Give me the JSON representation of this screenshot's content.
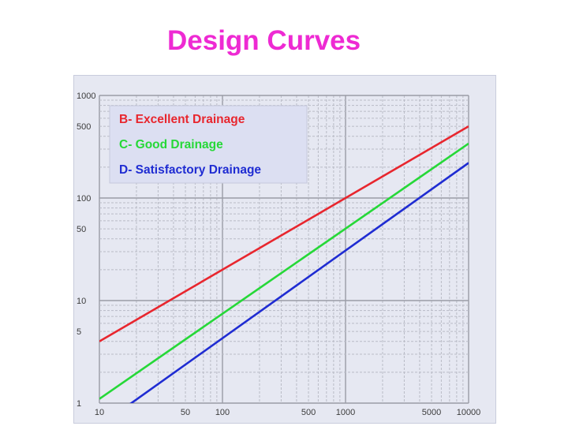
{
  "title": "Design Curves",
  "colors": {
    "title": "#ee2ad3",
    "panel_bg": "#e6e8f2",
    "legend_bg": "#dcdff2",
    "grid_major": "#9a9ca6",
    "grid_minor": "#b9bbc6"
  },
  "chart_data": {
    "type": "line",
    "xscale": "log",
    "yscale": "log",
    "xlim": [
      10,
      10000
    ],
    "ylim": [
      1,
      1000
    ],
    "x_ticks": [
      10,
      50,
      100,
      500,
      1000,
      5000,
      10000
    ],
    "x_tick_labels": [
      "10",
      "50",
      "100",
      "500",
      "1000",
      "5000",
      "10000"
    ],
    "y_ticks": [
      1,
      5,
      10,
      50,
      100,
      500,
      1000
    ],
    "y_tick_labels": [
      "1",
      "5",
      "10",
      "50",
      "100",
      "500",
      "1000"
    ],
    "grid": true,
    "legend_position": "top-left",
    "series": [
      {
        "name": "B- Excellent Drainage",
        "color": "#e8262e",
        "x": [
          10,
          10000
        ],
        "y": [
          4,
          500
        ]
      },
      {
        "name": "C- Good Drainage",
        "color": "#26d838",
        "x": [
          10,
          10000
        ],
        "y": [
          1.1,
          340
        ]
      },
      {
        "name": "D- Satisfactory Drainage",
        "color": "#1f2cd2",
        "x": [
          10,
          10000
        ],
        "y": [
          0.6,
          220
        ]
      }
    ]
  }
}
